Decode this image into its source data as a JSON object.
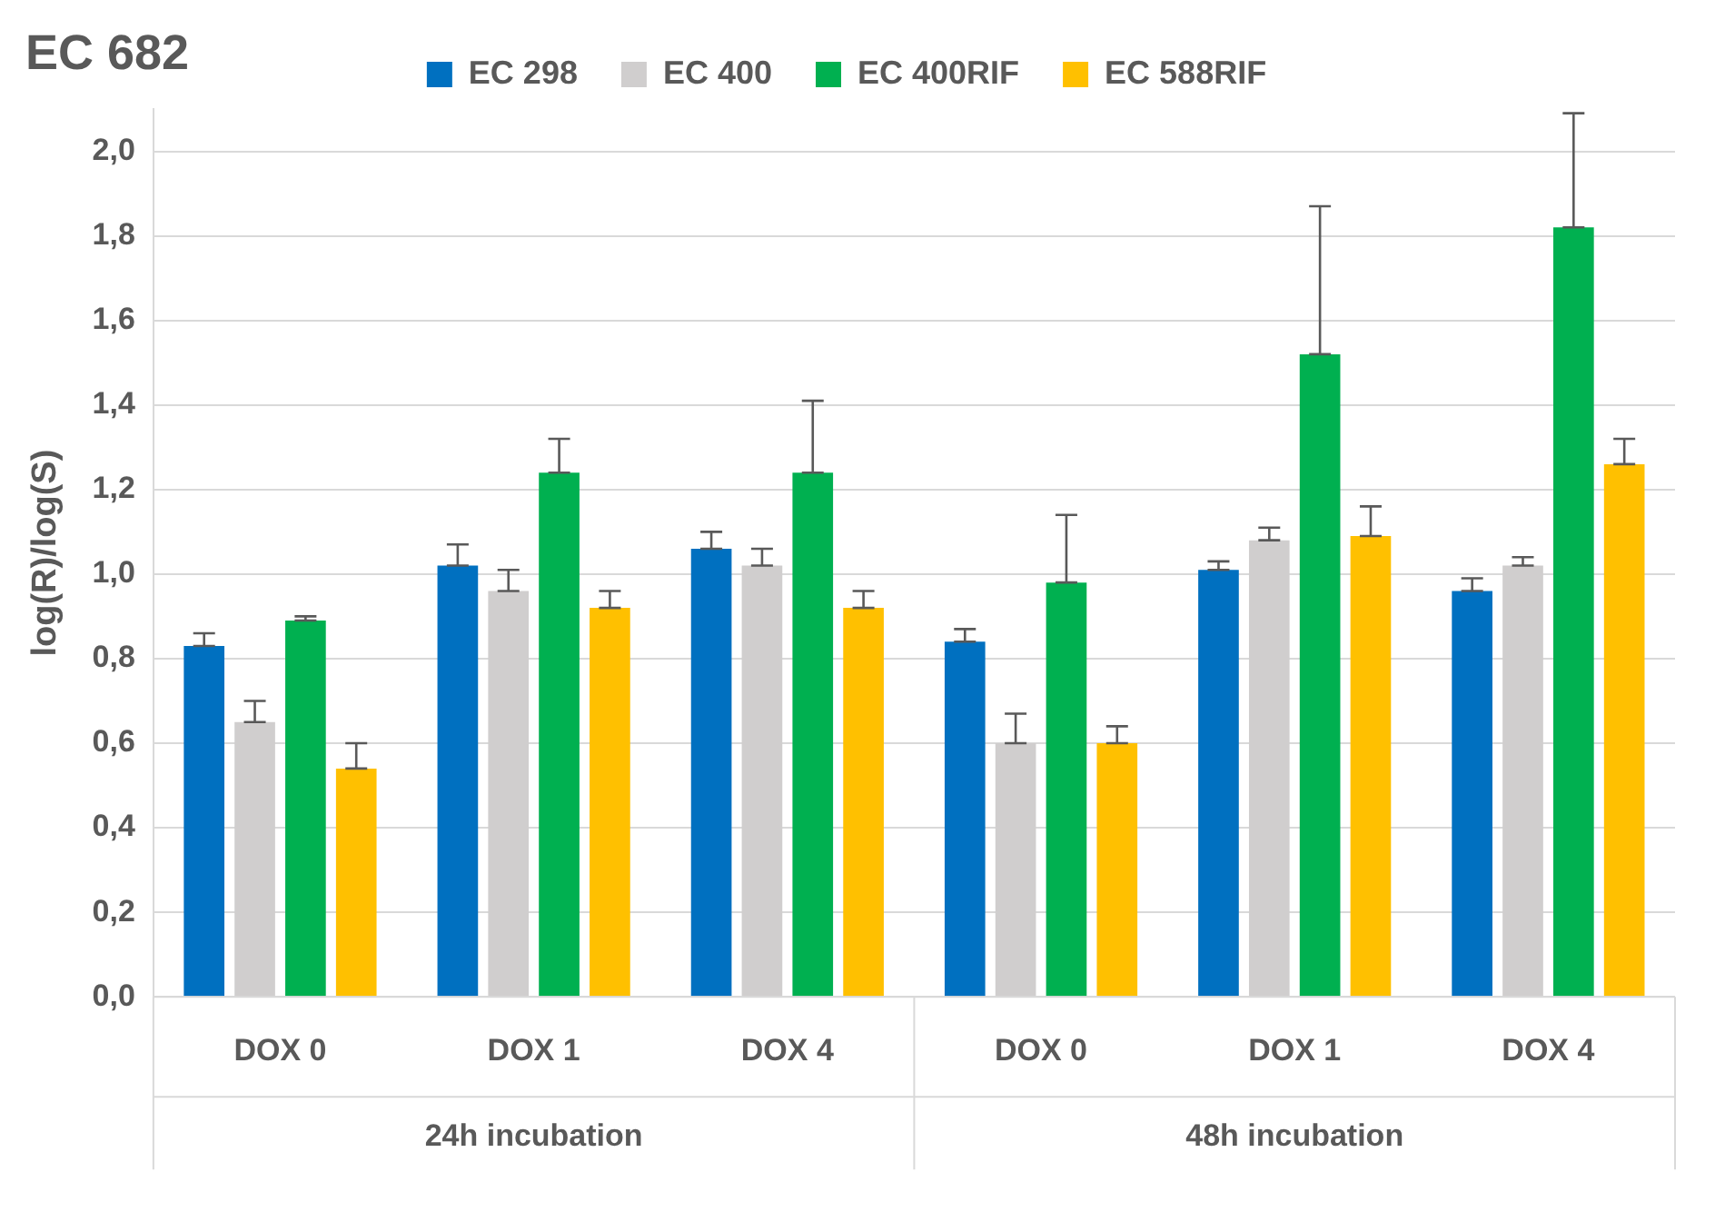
{
  "chart_data": {
    "type": "bar",
    "title": "EC 682",
    "ylabel": "log(R)/log(S)",
    "categories": [
      "DOX 0",
      "DOX 1",
      "DOX 4",
      "DOX 0",
      "DOX 1",
      "DOX 4"
    ],
    "annotations": [
      "24h incubation",
      "48h incubation"
    ],
    "series": [
      {
        "name": "EC 298",
        "color": "#0070c0",
        "values": [
          0.83,
          1.02,
          1.06,
          0.84,
          1.01,
          0.96
        ],
        "errors": [
          [
            0.83,
            0.86
          ],
          [
            1.02,
            1.07
          ],
          [
            1.06,
            1.1
          ],
          [
            0.84,
            0.87
          ],
          [
            1.01,
            1.03
          ],
          [
            0.96,
            0.99
          ]
        ]
      },
      {
        "name": "EC 400",
        "color": "#d0cece",
        "values": [
          0.65,
          0.96,
          1.02,
          0.6,
          1.08,
          1.02
        ],
        "errors": [
          [
            0.65,
            0.7
          ],
          [
            0.96,
            1.01
          ],
          [
            1.02,
            1.06
          ],
          [
            0.6,
            0.67
          ],
          [
            1.08,
            1.11
          ],
          [
            1.02,
            1.04
          ]
        ]
      },
      {
        "name": "EC 400RIF",
        "color": "#00b050",
        "values": [
          0.89,
          1.24,
          1.24,
          0.98,
          1.52,
          1.82
        ],
        "errors": [
          [
            0.89,
            0.9
          ],
          [
            1.24,
            1.32
          ],
          [
            1.24,
            1.41
          ],
          [
            0.98,
            1.14
          ],
          [
            1.52,
            1.87
          ],
          [
            1.82,
            2.09
          ]
        ]
      },
      {
        "name": "EC 588RIF",
        "color": "#ffc000",
        "values": [
          0.54,
          0.92,
          0.92,
          0.6,
          1.09,
          1.26
        ],
        "errors": [
          [
            0.54,
            0.6
          ],
          [
            0.92,
            0.96
          ],
          [
            0.92,
            0.96
          ],
          [
            0.6,
            0.64
          ],
          [
            1.09,
            1.16
          ],
          [
            1.26,
            1.32
          ]
        ]
      }
    ],
    "ylim": [
      0,
      2.1
    ],
    "yticks": [
      {
        "value": 0,
        "label": "0,0"
      },
      {
        "value": 0.2,
        "label": "0,2"
      },
      {
        "value": 0.4,
        "label": "0,4"
      },
      {
        "value": 0.6,
        "label": "0,6"
      },
      {
        "value": 0.8,
        "label": "0,8"
      },
      {
        "value": 1,
        "label": "1,0"
      },
      {
        "value": 1.2,
        "label": "1,2"
      },
      {
        "value": 1.4,
        "label": "1,4"
      },
      {
        "value": 1.6,
        "label": "1,6"
      },
      {
        "value": 1.8,
        "label": "1,8"
      },
      {
        "value": 2,
        "label": "2,0"
      }
    ],
    "grid": "y",
    "legend": "top"
  }
}
